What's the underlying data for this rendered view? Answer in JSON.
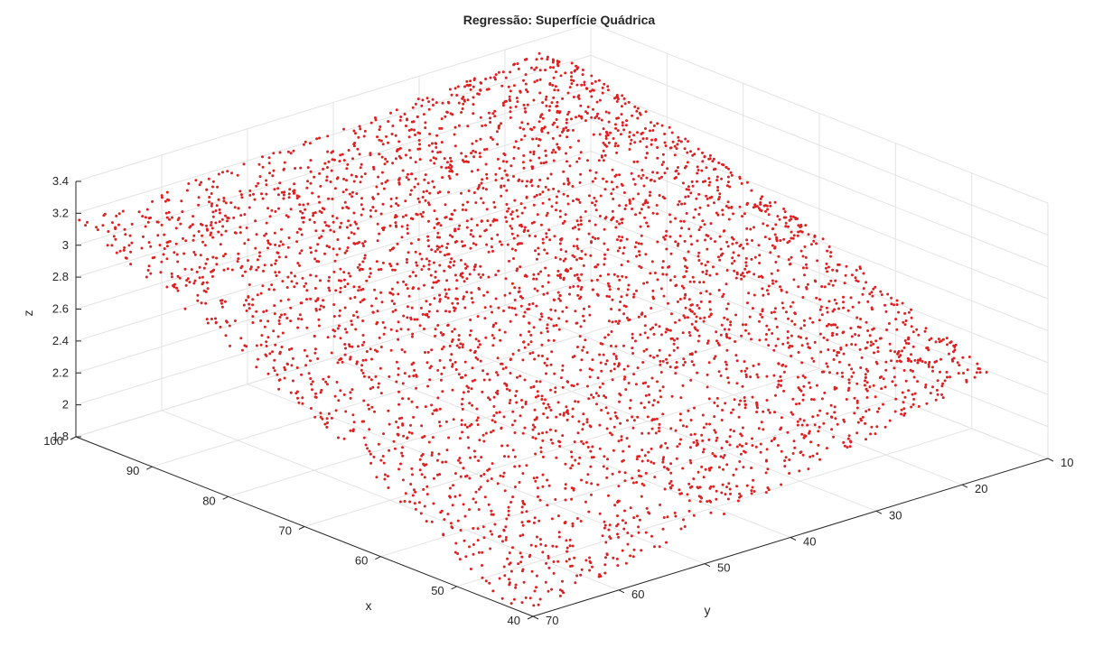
{
  "chart_data": {
    "type": "scatter",
    "title": "Regressão: Superfície Quádrica",
    "xlabel": "x",
    "ylabel": "y",
    "zlabel": "z",
    "xlim": [
      40,
      100
    ],
    "ylim": [
      10,
      70
    ],
    "zlim": [
      1.8,
      3.4
    ],
    "x_ticks": [
      "40",
      "50",
      "60",
      "70",
      "80",
      "90",
      "100"
    ],
    "y_ticks": [
      "10",
      "20",
      "30",
      "40",
      "50",
      "60",
      "70"
    ],
    "z_ticks": [
      "1.8",
      "2",
      "2.2",
      "2.4",
      "2.6",
      "2.8",
      "3",
      "3.2",
      "3.4"
    ],
    "marker_color": "#e02020",
    "grid": true,
    "series": [
      {
        "surface_corners": [
          {
            "x": 100,
            "y": 70,
            "z": 3.15
          },
          {
            "x": 100,
            "y": 15,
            "z": 3.33
          },
          {
            "x": 42,
            "y": 15,
            "z": 2.38
          },
          {
            "x": 42,
            "y": 70,
            "z": 1.76
          }
        ]
      }
    ]
  }
}
